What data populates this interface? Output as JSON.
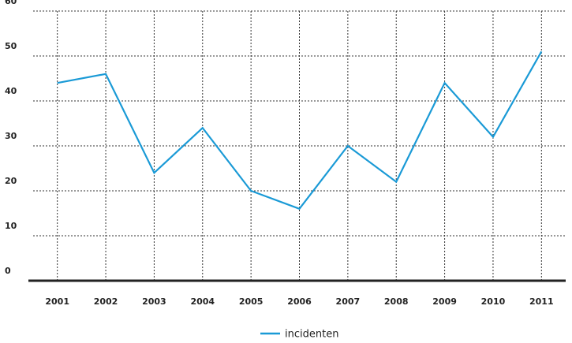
{
  "chart_data": {
    "type": "line",
    "categories": [
      "2001",
      "2002",
      "2003",
      "2004",
      "2005",
      "2006",
      "2007",
      "2008",
      "2009",
      "2010",
      "2011"
    ],
    "series": [
      {
        "name": "incidenten",
        "color": "#1a9ad6",
        "values": [
          44,
          46,
          24,
          34,
          20,
          16,
          30,
          22,
          44,
          32,
          51
        ]
      }
    ],
    "ylim": [
      0,
      60
    ],
    "yticks": [
      0,
      10,
      20,
      30,
      40,
      50,
      60
    ],
    "grid": true,
    "legend": "bottom"
  }
}
